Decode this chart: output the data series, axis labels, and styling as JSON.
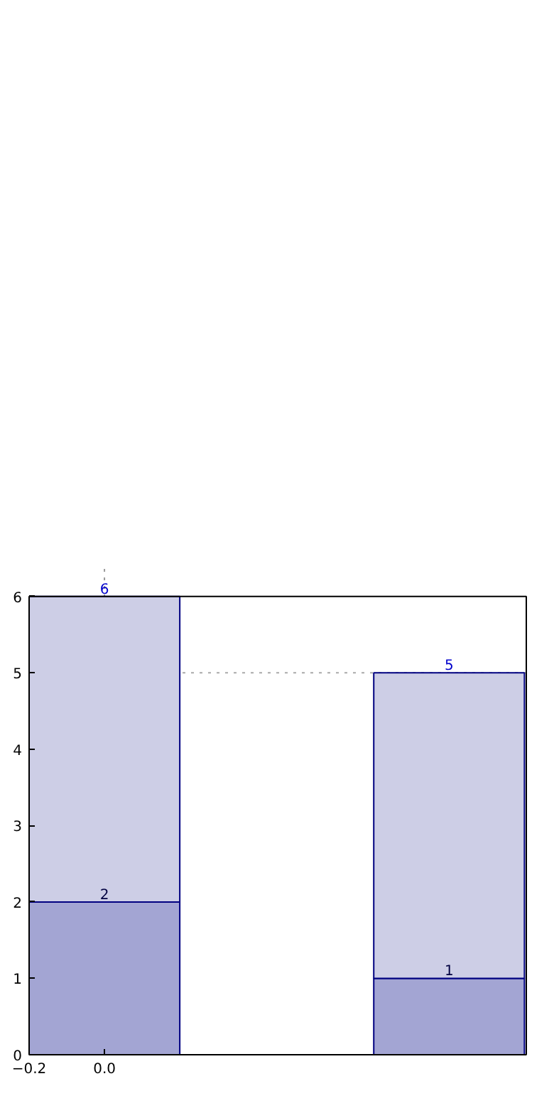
{
  "chart_data": {
    "type": "bar",
    "stacked": true,
    "x": [
      0,
      0.915
    ],
    "series": [
      {
        "color": "#a3a5d3",
        "values": [
          2,
          1
        ],
        "value_labels": [
          "2",
          "1"
        ]
      },
      {
        "color": "#cdcee6",
        "values": [
          4,
          4
        ]
      }
    ],
    "totals": [
      "6",
      "5"
    ],
    "xlim": [
      -0.2,
      1.12
    ],
    "xticks": [
      {
        "value": -0.2,
        "label": "−0.2"
      },
      {
        "value": 0.0,
        "label": "0.0"
      }
    ],
    "ylim": [
      0,
      6
    ],
    "yticks": [
      0,
      1,
      2,
      3,
      4,
      5,
      6
    ],
    "ref_lines": [
      {
        "axis": "y",
        "value": 5,
        "color": "#aaaaaa",
        "line_style": "dotted"
      },
      {
        "axis": "x",
        "value": 0,
        "color": "#999999",
        "line_style": "dotted"
      }
    ]
  }
}
